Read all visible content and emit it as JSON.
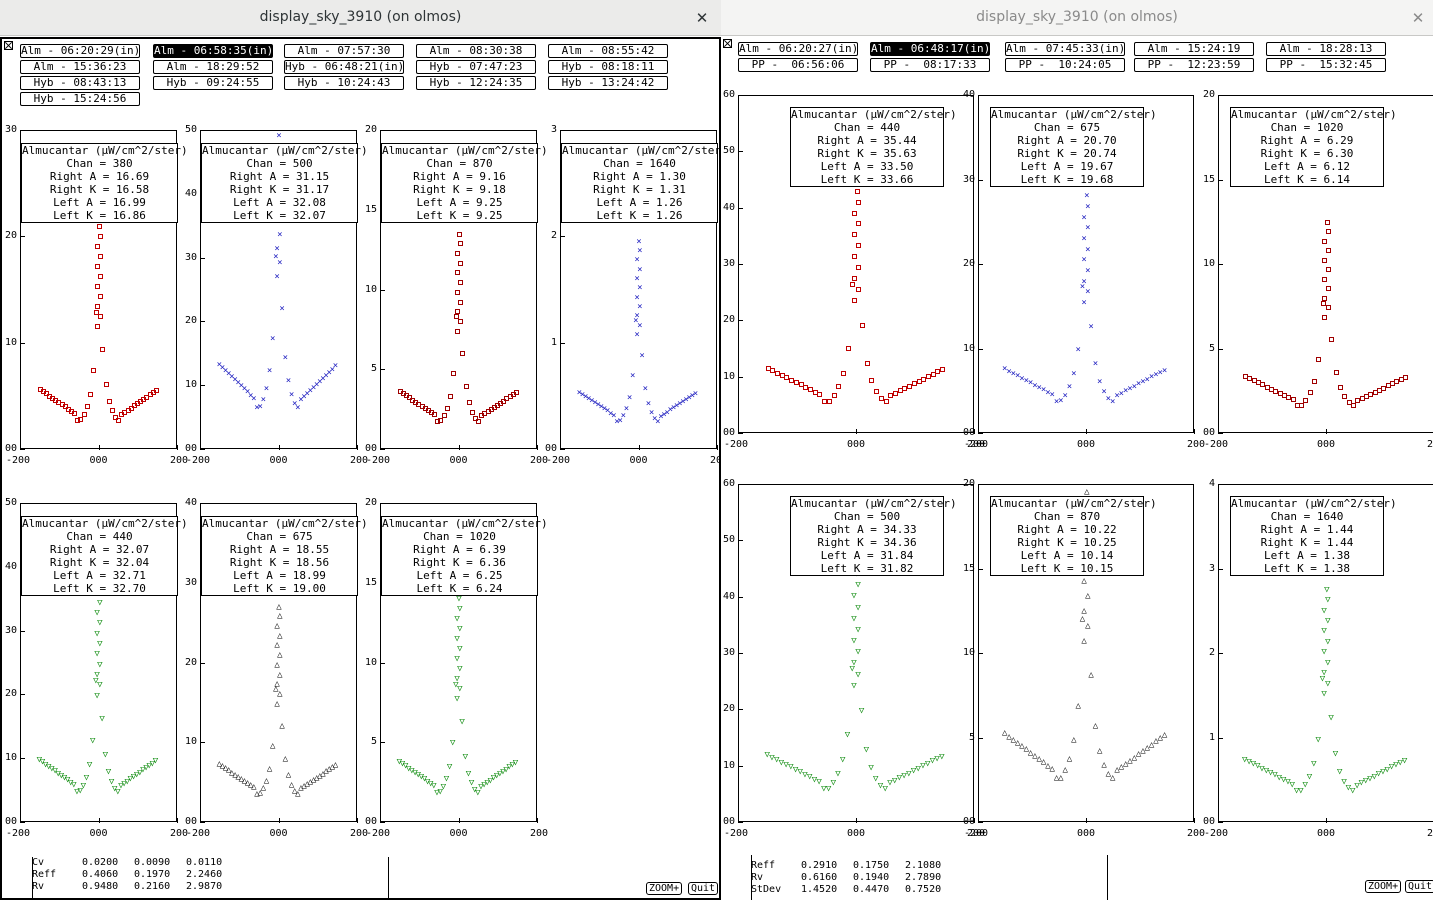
{
  "windows": [
    {
      "id": "left",
      "title": "display_sky_3910 (on olmos)",
      "close_glyph": "✕",
      "buttons": [
        {
          "label": "Alm - 06:20:29(in)",
          "selected": false
        },
        {
          "label": "Alm - 06:58:35(in)",
          "selected": true
        },
        {
          "label": "Alm - 07:57:30",
          "selected": false
        },
        {
          "label": "Alm - 08:30:38",
          "selected": false
        },
        {
          "label": "Alm - 08:55:42",
          "selected": false
        },
        {
          "label": "Alm - 15:36:23",
          "selected": false
        },
        {
          "label": "Alm - 18:29:52",
          "selected": false
        },
        {
          "label": "Hyb - 06:48:21(in)",
          "selected": false
        },
        {
          "label": "Hyb - 07:47:23",
          "selected": false
        },
        {
          "label": "Hyb - 08:18:11",
          "selected": false
        },
        {
          "label": "Hyb - 08:43:13",
          "selected": false
        },
        {
          "label": "Hyb - 09:24:55",
          "selected": false
        },
        {
          "label": "Hyb - 10:24:43",
          "selected": false
        },
        {
          "label": "Hyb - 12:24:35",
          "selected": false
        },
        {
          "label": "Hyb - 13:24:42",
          "selected": false
        },
        {
          "label": "Hyb - 15:24:56",
          "selected": false
        }
      ],
      "plots": [
        {
          "chan": "380",
          "right_a": "16.69",
          "right_k": "16.58",
          "left_a": "16.99",
          "left_k": "16.86",
          "ymax": 30,
          "yticks": [
            "30",
            "20",
            "10",
            "00"
          ],
          "color": "#c00000",
          "marker": "sq",
          "peak": 21
        },
        {
          "chan": "500",
          "right_a": "31.15",
          "right_k": "31.17",
          "left_a": "32.08",
          "left_k": "32.07",
          "ymax": 50,
          "yticks": [
            "50",
            "40",
            "30",
            "20",
            "10",
            "00"
          ],
          "color": "#2020c0",
          "marker": "x",
          "peak": 49
        },
        {
          "chan": "870",
          "right_a": "9.16",
          "right_k": "9.18",
          "left_a": "9.25",
          "left_k": "9.25",
          "ymax": 20,
          "yticks": [
            "20",
            "15",
            "10",
            "5",
            "00"
          ],
          "color": "#a00000",
          "marker": "sq",
          "peak": 13.5
        },
        {
          "chan": "1640",
          "right_a": "1.30",
          "right_k": "1.31",
          "left_a": "1.26",
          "left_k": "1.26",
          "ymax": 3,
          "yticks": [
            "3",
            "2",
            "1",
            "00"
          ],
          "color": "#2020c0",
          "marker": "x",
          "peak": 1.95
        },
        {
          "chan": "440",
          "right_a": "32.07",
          "right_k": "32.04",
          "left_a": "32.71",
          "left_k": "32.70",
          "ymax": 50,
          "yticks": [
            "50",
            "40",
            "30",
            "20",
            "10",
            "00"
          ],
          "color": "#0a8a0a",
          "marker": "tri-down",
          "peak": 36
        },
        {
          "chan": "675",
          "right_a": "18.55",
          "right_k": "18.56",
          "left_a": "18.99",
          "left_k": "19.00",
          "ymax": 40,
          "yticks": [
            "40",
            "30",
            "20",
            "10",
            "00"
          ],
          "color": "#000000",
          "marker": "tri-up",
          "peak": 27
        },
        {
          "chan": "1020",
          "right_a": "6.39",
          "right_k": "6.36",
          "left_a": "6.25",
          "left_k": "6.24",
          "ymax": 20,
          "yticks": [
            "20",
            "15",
            "10",
            "5",
            "00"
          ],
          "color": "#0a8a0a",
          "marker": "tri-down",
          "peak": 14
        }
      ],
      "stats": [
        {
          "name": "Cv",
          "v1": "0.0200",
          "v2": "0.0090",
          "v3": "0.0110"
        },
        {
          "name": "Reff",
          "v1": "0.4060",
          "v2": "0.1970",
          "v3": "2.2460"
        },
        {
          "name": "Rv",
          "v1": "0.9480",
          "v2": "0.2160",
          "v3": "2.9870"
        }
      ],
      "zoom_label": "ZOOM+",
      "quit_label": "Quit"
    },
    {
      "id": "right",
      "title": "display_sky_3910 (on olmos)",
      "close_glyph": "✕",
      "buttons": [
        {
          "label": "Alm - 06:20:27(in)",
          "selected": false
        },
        {
          "label": "Alm - 06:48:17(in)",
          "selected": true
        },
        {
          "label": "Alm - 07:45:33(in)",
          "selected": false
        },
        {
          "label": "Alm - 15:24:19",
          "selected": false
        },
        {
          "label": "Alm - 18:28:13",
          "selected": false
        },
        {
          "label": "PP -  06:56:06",
          "selected": false
        },
        {
          "label": "PP -  08:17:33",
          "selected": false
        },
        {
          "label": "PP -  10:24:05",
          "selected": false
        },
        {
          "label": "PP -  12:23:59",
          "selected": false
        },
        {
          "label": "PP -  15:32:45",
          "selected": false
        }
      ],
      "plots": [
        {
          "chan": "440",
          "right_a": "35.44",
          "right_k": "35.63",
          "left_a": "33.50",
          "left_k": "33.66",
          "ymax": 60,
          "yticks": [
            "60",
            "50",
            "40",
            "30",
            "20",
            "10",
            "00"
          ],
          "color": "#c00000",
          "marker": "sq",
          "peak": 43
        },
        {
          "chan": "675",
          "right_a": "20.70",
          "right_k": "20.74",
          "left_a": "19.67",
          "left_k": "19.68",
          "ymax": 40,
          "yticks": [
            "40",
            "30",
            "20",
            "10",
            "00"
          ],
          "color": "#2020c0",
          "marker": "x",
          "peak": 28
        },
        {
          "chan": "1020",
          "right_a": "6.29",
          "right_k": "6.30",
          "left_a": "6.12",
          "left_k": "6.14",
          "ymax": 20,
          "yticks": [
            "20",
            "15",
            "10",
            "5",
            "00"
          ],
          "color": "#a00000",
          "marker": "sq",
          "peak": 12.5
        },
        {
          "chan": "500",
          "right_a": "34.33",
          "right_k": "34.36",
          "left_a": "31.84",
          "left_k": "31.82",
          "ymax": 60,
          "yticks": [
            "60",
            "50",
            "40",
            "30",
            "20",
            "10",
            "00"
          ],
          "color": "#0a8a0a",
          "marker": "tri-down",
          "peak": 44
        },
        {
          "chan": "870",
          "right_a": "10.22",
          "right_k": "10.25",
          "left_a": "10.14",
          "left_k": "10.15",
          "ymax": 20,
          "yticks": [
            "20",
            "15",
            "10",
            "5",
            "00"
          ],
          "color": "#000000",
          "marker": "tri-up",
          "peak": 19.5
        },
        {
          "chan": "1640",
          "right_a": "1.44",
          "right_k": "1.44",
          "left_a": "1.38",
          "left_k": "1.38",
          "ymax": 4,
          "yticks": [
            "4",
            "3",
            "2",
            "1",
            "00"
          ],
          "color": "#0a8a0a",
          "marker": "tri-down",
          "peak": 2.75
        }
      ],
      "stats": [
        {
          "name": "Reff",
          "v1": "0.2910",
          "v2": "0.1750",
          "v3": "2.1080"
        },
        {
          "name": "Rv",
          "v1": "0.6160",
          "v2": "0.1940",
          "v3": "2.7890"
        },
        {
          "name": "StDev",
          "v1": "1.4520",
          "v2": "0.4470",
          "v3": "0.7520"
        }
      ],
      "zoom_label": "ZOOM+",
      "quit_label": "Quit"
    }
  ],
  "plot_labels": {
    "heading": "Almucantar (µW/cm^2/ster)",
    "chan_prefix": "Chan = ",
    "right_a_prefix": "Right A = ",
    "right_k_prefix": "Right K = ",
    "left_a_prefix": "Left A = ",
    "left_k_prefix": "Left K = ",
    "x_ticks": [
      "-200",
      "000",
      "200"
    ]
  },
  "marker_glyphs": {
    "x": "×",
    "tri-up": "△",
    "tri-down": "▽"
  }
}
